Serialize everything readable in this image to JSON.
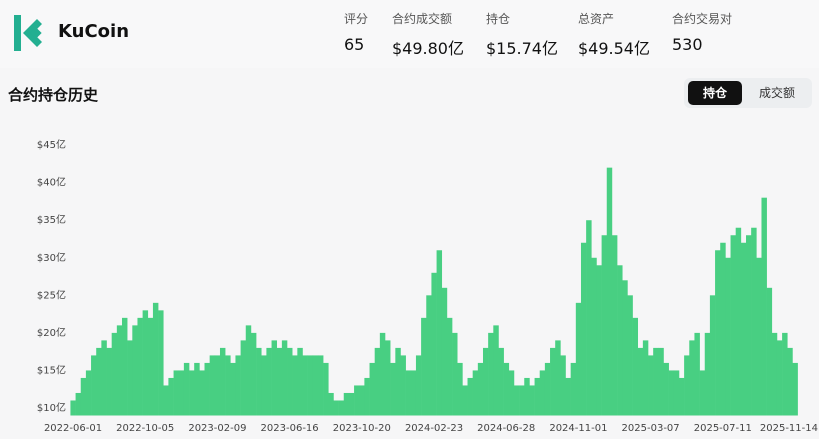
{
  "header": {
    "brand": "KuCoin"
  },
  "stats": [
    {
      "label": "评分",
      "value": "65"
    },
    {
      "label": "合约成交额",
      "value": "$49.80亿"
    },
    {
      "label": "持仓",
      "value": "$15.74亿"
    },
    {
      "label": "总资产",
      "value": "$49.54亿"
    },
    {
      "label": "合约交易对",
      "value": "530"
    }
  ],
  "toggle": [
    "持仓",
    "成交额"
  ],
  "chart_data": {
    "type": "bar",
    "title": "合约持仓历史",
    "color": "#48cf82",
    "grid": false,
    "ylim": [
      9,
      46
    ],
    "yticks": [
      {
        "value": 10,
        "label": "$10亿"
      },
      {
        "value": 15,
        "label": "$15亿"
      },
      {
        "value": 20,
        "label": "$20亿"
      },
      {
        "value": 25,
        "label": "$25亿"
      },
      {
        "value": 30,
        "label": "$30亿"
      },
      {
        "value": 35,
        "label": "$35亿"
      },
      {
        "value": 40,
        "label": "$40亿"
      },
      {
        "value": 45,
        "label": "$45亿"
      }
    ],
    "categories": [
      "2022-06-01",
      null,
      null,
      null,
      null,
      null,
      null,
      null,
      null,
      null,
      null,
      null,
      null,
      null,
      "2022-10-05",
      null,
      null,
      null,
      null,
      null,
      null,
      null,
      null,
      null,
      null,
      null,
      null,
      null,
      "2023-02-09",
      null,
      null,
      null,
      null,
      null,
      null,
      null,
      null,
      null,
      null,
      null,
      null,
      null,
      "2023-06-16",
      null,
      null,
      null,
      null,
      null,
      null,
      null,
      null,
      null,
      null,
      null,
      null,
      null,
      "2023-10-20",
      null,
      null,
      null,
      null,
      null,
      null,
      null,
      null,
      null,
      null,
      null,
      null,
      null,
      "2024-02-23",
      null,
      null,
      null,
      null,
      null,
      null,
      null,
      null,
      null,
      null,
      null,
      null,
      null,
      "2024-06-28",
      null,
      null,
      null,
      null,
      null,
      null,
      null,
      null,
      null,
      null,
      null,
      null,
      null,
      "2024-11-01",
      null,
      null,
      null,
      null,
      null,
      null,
      null,
      null,
      null,
      null,
      null,
      null,
      null,
      "2025-03-07",
      null,
      null,
      null,
      null,
      null,
      null,
      null,
      null,
      null,
      null,
      null,
      null,
      null,
      "2025-07-11",
      null,
      null,
      null,
      null,
      null,
      null,
      null,
      null,
      null,
      null,
      null,
      null,
      null,
      "2025-11-14"
    ],
    "values": [
      11,
      12,
      14,
      15,
      17,
      18,
      19,
      18,
      20,
      21,
      22,
      19,
      21,
      22,
      23,
      22,
      24,
      23,
      13,
      14,
      15,
      15,
      16,
      15,
      16,
      15,
      16,
      17,
      17,
      18,
      17,
      16,
      17,
      19,
      21,
      20,
      18,
      17,
      18,
      19,
      18,
      19,
      18,
      17,
      18,
      17,
      17,
      17,
      17,
      16,
      12,
      11,
      11,
      12,
      12,
      13,
      13,
      14,
      16,
      18,
      20,
      19,
      16,
      18,
      17,
      15,
      15,
      17,
      22,
      25,
      28,
      31,
      26,
      22,
      20,
      16,
      13,
      14,
      15,
      16,
      18,
      20,
      21,
      18,
      16,
      15,
      13,
      13,
      14,
      13,
      14,
      15,
      16,
      18,
      19,
      17,
      14,
      16,
      24,
      32,
      35,
      30,
      29,
      33,
      42,
      33,
      29,
      27,
      25,
      22,
      18,
      19,
      17,
      18,
      18,
      16,
      15,
      15,
      14,
      17,
      19,
      20,
      15,
      20,
      25,
      31,
      32,
      30,
      33,
      34,
      32,
      33,
      34,
      30,
      38,
      26,
      20,
      19,
      20,
      18,
      16
    ]
  }
}
